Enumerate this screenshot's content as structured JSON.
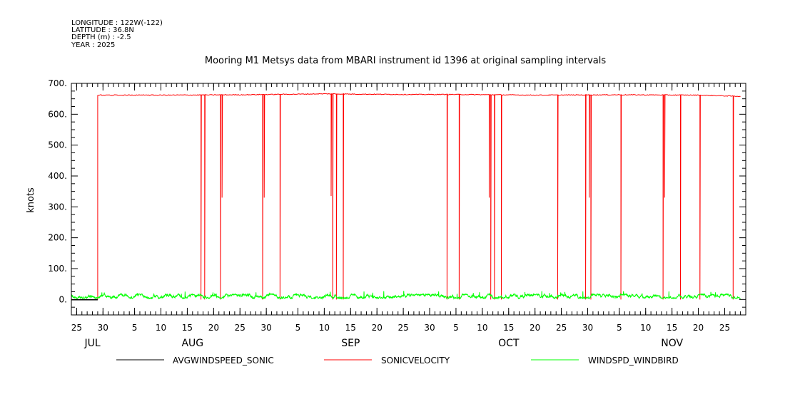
{
  "header": {
    "lines": [
      "LONGITUDE : 122W(-122)",
      "LATITUDE : 36.8N",
      "DEPTH (m) : -2.5",
      "YEAR : 2025"
    ]
  },
  "chart_data": {
    "type": "line",
    "title": "Mooring M1 Metsys data from MBARI instrument id 1396 at original sampling intervals",
    "ylabel": "knots",
    "ylim": [
      -50,
      700
    ],
    "yticks": [
      0,
      100,
      200,
      300,
      400,
      500,
      600,
      700
    ],
    "ytick_labels": [
      "0.",
      "100.",
      "200.",
      "300.",
      "400.",
      "500.",
      "600.",
      "700."
    ],
    "xlim": [
      "2025-07-24",
      "2025-11-29"
    ],
    "xticks": [
      {
        "date": "2025-07-25",
        "label": "25"
      },
      {
        "date": "2025-07-30",
        "label": "30"
      },
      {
        "date": "2025-08-05",
        "label": "5"
      },
      {
        "date": "2025-08-10",
        "label": "10"
      },
      {
        "date": "2025-08-15",
        "label": "15"
      },
      {
        "date": "2025-08-20",
        "label": "20"
      },
      {
        "date": "2025-08-25",
        "label": "25"
      },
      {
        "date": "2025-08-30",
        "label": "30"
      },
      {
        "date": "2025-09-05",
        "label": "5"
      },
      {
        "date": "2025-09-10",
        "label": "10"
      },
      {
        "date": "2025-09-15",
        "label": "15"
      },
      {
        "date": "2025-09-20",
        "label": "20"
      },
      {
        "date": "2025-09-25",
        "label": "25"
      },
      {
        "date": "2025-09-30",
        "label": "30"
      },
      {
        "date": "2025-10-05",
        "label": "5"
      },
      {
        "date": "2025-10-10",
        "label": "10"
      },
      {
        "date": "2025-10-15",
        "label": "15"
      },
      {
        "date": "2025-10-20",
        "label": "20"
      },
      {
        "date": "2025-10-25",
        "label": "25"
      },
      {
        "date": "2025-10-30",
        "label": "30"
      },
      {
        "date": "2025-11-05",
        "label": "5"
      },
      {
        "date": "2025-11-10",
        "label": "10"
      },
      {
        "date": "2025-11-15",
        "label": "15"
      },
      {
        "date": "2025-11-20",
        "label": "20"
      },
      {
        "date": "2025-11-25",
        "label": "25"
      }
    ],
    "months": [
      {
        "date": "2025-07-28",
        "label": "JUL"
      },
      {
        "date": "2025-08-16",
        "label": "AUG"
      },
      {
        "date": "2025-09-15",
        "label": "SEP"
      },
      {
        "date": "2025-10-15",
        "label": "OCT"
      },
      {
        "date": "2025-11-15",
        "label": "NOV"
      }
    ],
    "grid": false,
    "legend": "bottom",
    "series": [
      {
        "name": "AVGWINDSPEED_SONIC",
        "color": "#000000",
        "segments": [
          [
            [
              "2025-07-24",
              -1
            ],
            [
              "2025-07-29",
              -1
            ]
          ]
        ]
      },
      {
        "name": "SONICVELOCITY",
        "color": "#ff0000",
        "baseline": [
          [
            "2025-07-29",
            662
          ],
          [
            "2025-08-10",
            662
          ],
          [
            "2025-08-25",
            663
          ],
          [
            "2025-09-10",
            666
          ],
          [
            "2025-09-25",
            664
          ],
          [
            "2025-10-05",
            664
          ],
          [
            "2025-10-20",
            662
          ],
          [
            "2025-11-05",
            663
          ],
          [
            "2025-11-20",
            662
          ],
          [
            "2025-11-28",
            658
          ]
        ],
        "start": {
          "date": "2025-07-29",
          "value": 0
        },
        "drops": [
          {
            "date": "2025-08-17",
            "min": 0
          },
          {
            "date": "2025-08-18",
            "min": 0
          },
          {
            "date": "2025-08-21",
            "min": 330
          },
          {
            "date": "2025-08-21",
            "min": 0
          },
          {
            "date": "2025-08-29",
            "min": 330
          },
          {
            "date": "2025-08-29",
            "min": 0
          },
          {
            "date": "2025-09-01",
            "min": 0
          },
          {
            "date": "2025-09-11",
            "min": 335
          },
          {
            "date": "2025-09-11",
            "min": 0
          },
          {
            "date": "2025-09-12",
            "min": 0
          },
          {
            "date": "2025-09-13",
            "min": 0
          },
          {
            "date": "2025-10-03",
            "min": 0
          },
          {
            "date": "2025-10-05",
            "min": 0
          },
          {
            "date": "2025-10-11",
            "min": 330
          },
          {
            "date": "2025-10-11",
            "min": 0
          },
          {
            "date": "2025-10-12",
            "min": 0
          },
          {
            "date": "2025-10-13",
            "min": 0
          },
          {
            "date": "2025-10-24",
            "min": 0
          },
          {
            "date": "2025-10-29",
            "min": 0
          },
          {
            "date": "2025-10-30",
            "min": 330
          },
          {
            "date": "2025-10-30",
            "min": 0
          },
          {
            "date": "2025-11-05",
            "min": 0
          },
          {
            "date": "2025-11-13",
            "min": 330
          },
          {
            "date": "2025-11-13",
            "min": 0
          },
          {
            "date": "2025-11-16",
            "min": 0
          },
          {
            "date": "2025-11-20",
            "min": 0
          },
          {
            "date": "2025-11-26",
            "min": 0
          }
        ]
      },
      {
        "name": "WINDSPD_WINDBIRD",
        "color": "#00ff00",
        "range": [
          "2025-07-24",
          "2025-11-28"
        ],
        "typical": [
          3,
          18
        ],
        "peak": 28
      }
    ]
  }
}
